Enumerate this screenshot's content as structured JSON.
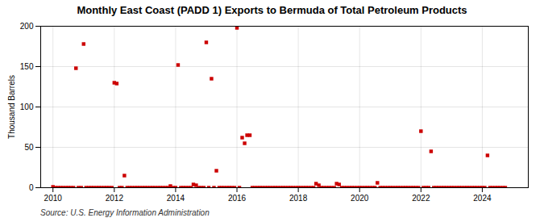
{
  "chart_data": {
    "type": "scatter",
    "title": "Monthly East Coast (PADD 1) Exports to Bermuda of Total Petroleum Products",
    "y_label": "Thousand Barrels",
    "source": "Source: U.S. Energy Information Administration",
    "color": "#cc0000",
    "marker": "square",
    "grid": true,
    "xlim": [
      2009.6,
      2025.5
    ],
    "ylim": [
      0,
      200
    ],
    "xticks": [
      2010,
      2012,
      2014,
      2016,
      2018,
      2020,
      2022,
      2024
    ],
    "yticks": [
      0,
      50,
      100,
      150,
      200
    ],
    "x": [
      2010.0,
      2010.08,
      2010.17,
      2010.25,
      2010.33,
      2010.42,
      2010.5,
      2010.58,
      2010.67,
      2010.75,
      2010.83,
      2010.92,
      2011.0,
      2011.08,
      2011.17,
      2011.25,
      2011.33,
      2011.42,
      2011.5,
      2011.58,
      2011.67,
      2011.75,
      2011.83,
      2011.92,
      2012.0,
      2012.08,
      2012.17,
      2012.25,
      2012.33,
      2012.42,
      2012.5,
      2012.58,
      2012.67,
      2012.75,
      2012.83,
      2012.92,
      2013.0,
      2013.08,
      2013.17,
      2013.25,
      2013.33,
      2013.42,
      2013.5,
      2013.58,
      2013.67,
      2013.75,
      2013.83,
      2013.92,
      2014.0,
      2014.08,
      2014.17,
      2014.25,
      2014.33,
      2014.42,
      2014.5,
      2014.58,
      2014.67,
      2014.75,
      2014.83,
      2014.92,
      2015.0,
      2015.08,
      2015.17,
      2015.25,
      2015.33,
      2015.42,
      2015.5,
      2015.58,
      2015.67,
      2015.75,
      2015.83,
      2015.92,
      2016.0,
      2016.08,
      2016.17,
      2016.25,
      2016.33,
      2016.42,
      2016.5,
      2016.58,
      2016.67,
      2016.75,
      2016.83,
      2016.92,
      2017.0,
      2017.08,
      2017.17,
      2017.25,
      2017.33,
      2017.42,
      2017.5,
      2017.58,
      2017.67,
      2017.75,
      2017.83,
      2017.92,
      2018.0,
      2018.08,
      2018.17,
      2018.25,
      2018.33,
      2018.42,
      2018.5,
      2018.58,
      2018.67,
      2018.75,
      2018.83,
      2018.92,
      2019.0,
      2019.08,
      2019.17,
      2019.25,
      2019.33,
      2019.42,
      2019.5,
      2019.58,
      2019.67,
      2019.75,
      2019.83,
      2019.92,
      2020.0,
      2020.08,
      2020.17,
      2020.25,
      2020.33,
      2020.42,
      2020.5,
      2020.58,
      2020.67,
      2020.75,
      2020.83,
      2020.92,
      2021.0,
      2021.08,
      2021.17,
      2021.25,
      2021.33,
      2021.42,
      2021.5,
      2021.58,
      2021.67,
      2021.75,
      2021.83,
      2021.92,
      2022.0,
      2022.08,
      2022.17,
      2022.25,
      2022.33,
      2022.42,
      2022.5,
      2022.58,
      2022.67,
      2022.75,
      2022.83,
      2022.92,
      2023.0,
      2023.08,
      2023.17,
      2023.25,
      2023.33,
      2023.42,
      2023.5,
      2023.58,
      2023.67,
      2023.75,
      2023.83,
      2023.92,
      2024.0,
      2024.08,
      2024.17,
      2024.25,
      2024.33,
      2024.42,
      2024.5,
      2024.58,
      2024.67,
      2024.75
    ],
    "values": [
      1,
      0,
      0,
      0,
      0,
      0,
      0,
      0,
      0,
      148,
      0,
      0,
      178,
      0,
      0,
      0,
      0,
      0,
      0,
      0,
      0,
      0,
      0,
      0,
      130,
      129,
      0,
      0,
      15,
      0,
      0,
      0,
      0,
      0,
      0,
      0,
      0,
      0,
      0,
      0,
      0,
      0,
      0,
      0,
      0,
      0,
      2,
      0,
      0,
      152,
      0,
      0,
      0,
      0,
      0,
      4,
      3,
      0,
      0,
      0,
      180,
      0,
      135,
      0,
      21,
      0,
      0,
      0,
      0,
      0,
      0,
      0,
      198,
      0,
      62,
      55,
      65,
      65,
      0,
      0,
      0,
      0,
      0,
      0,
      0,
      0,
      0,
      0,
      0,
      0,
      0,
      0,
      0,
      0,
      0,
      0,
      0,
      0,
      0,
      0,
      0,
      0,
      0,
      5,
      3,
      0,
      0,
      0,
      0,
      0,
      0,
      5,
      4,
      0,
      0,
      0,
      0,
      0,
      0,
      0,
      0,
      0,
      0,
      0,
      0,
      0,
      0,
      6,
      0,
      0,
      0,
      0,
      0,
      0,
      0,
      0,
      0,
      0,
      0,
      0,
      0,
      0,
      0,
      0,
      70,
      0,
      0,
      0,
      45,
      0,
      0,
      0,
      0,
      0,
      0,
      0,
      0,
      0,
      0,
      0,
      0,
      0,
      0,
      0,
      0,
      0,
      0,
      0,
      0,
      0,
      40,
      0,
      0,
      0,
      0,
      0,
      0,
      0
    ]
  }
}
